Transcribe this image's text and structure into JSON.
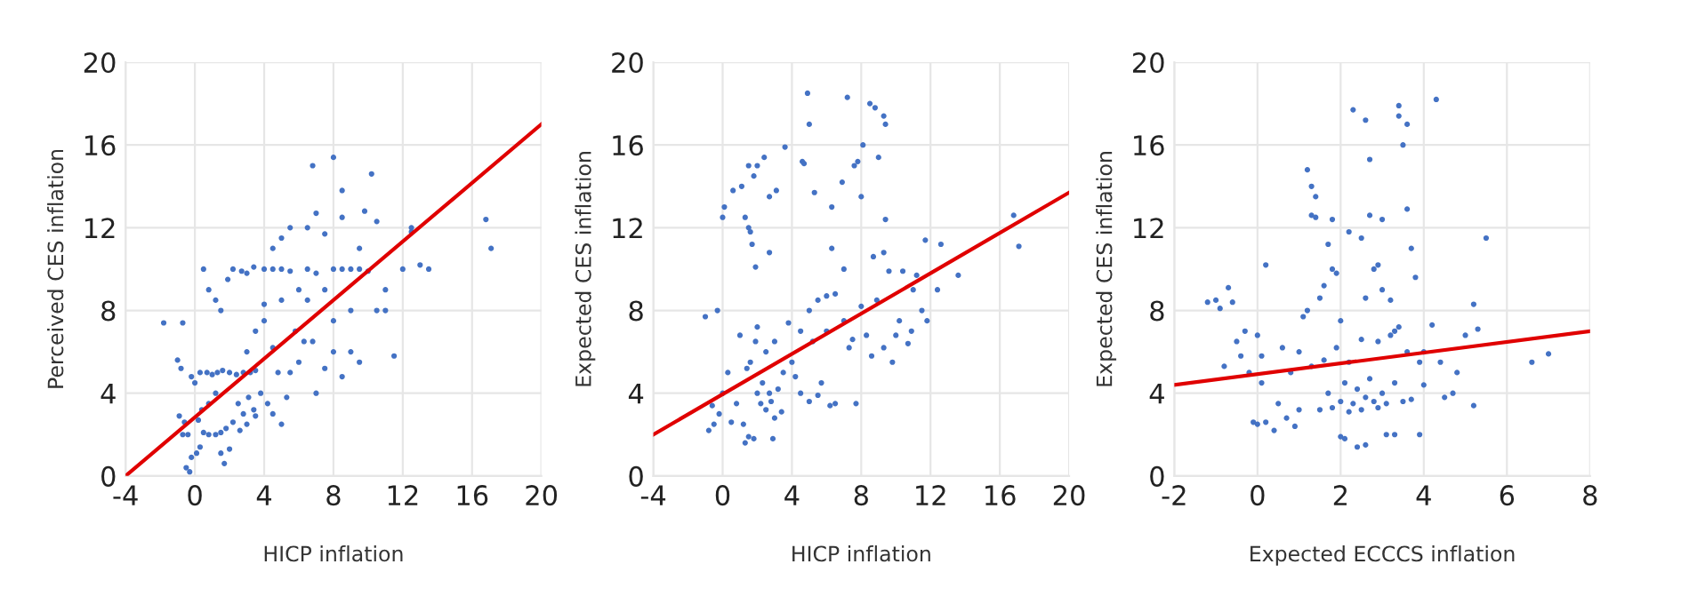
{
  "chart_data": [
    {
      "type": "scatter",
      "xlabel": "HICP inflation",
      "ylabel": "Perceived CES inflation",
      "xlim": [
        -4,
        20
      ],
      "ylim": [
        0,
        20
      ],
      "xticks": [
        -4,
        0,
        4,
        8,
        12,
        16,
        20
      ],
      "yticks": [
        0,
        4,
        8,
        12,
        16,
        20
      ],
      "grid": true,
      "series": [
        {
          "marker": "circle",
          "color": "#4472c4",
          "x": [
            -1.8,
            -0.7,
            -1,
            -0.8,
            -0.2,
            0,
            -0.9,
            -0.6,
            -0.7,
            -0.4,
            -0.5,
            -0.3,
            -0.2,
            0.1,
            0.3,
            0.5,
            0.8,
            1.2,
            1.5,
            1.8,
            1.5,
            1.7,
            2,
            0.2,
            0.4,
            0.8,
            1.2,
            0.3,
            0.7,
            1,
            1.3,
            1.6,
            2,
            2.4,
            2.8,
            3.2,
            3.5,
            0.5,
            0.8,
            1.2,
            1.5,
            1.9,
            2.2,
            2.7,
            3,
            3.4,
            4,
            4.5,
            5,
            5.5,
            6.5,
            7,
            8,
            8.5,
            9,
            9.5,
            10,
            2.5,
            2.8,
            3.1,
            3.4,
            2.2,
            2.6,
            3,
            3.5,
            3.8,
            4.2,
            4.5,
            5,
            5.3,
            4.8,
            5.5,
            6,
            6.3,
            6.8,
            7,
            7.5,
            8,
            8.5,
            9,
            9.5,
            10.5,
            11,
            11.5,
            11,
            12,
            12.5,
            13.5,
            13,
            12.5,
            10.5,
            10.2,
            8,
            6.8,
            8.5,
            9.8,
            6.5,
            5.5,
            7,
            8.5,
            4.5,
            5,
            7.5,
            9.5,
            4,
            5,
            6,
            4.5,
            3.5,
            4,
            16.8,
            17.1,
            5.8,
            7.5,
            9,
            8,
            6.5,
            3
          ],
          "values": [
            7.4,
            7.4,
            5.6,
            5.2,
            4.8,
            4.5,
            2.9,
            2.6,
            2,
            2,
            0.4,
            0.2,
            0.9,
            1.1,
            1.4,
            2.1,
            2,
            2,
            2.1,
            2.3,
            1.1,
            0.6,
            1.3,
            2.7,
            3.2,
            3.5,
            4,
            5,
            5,
            4.9,
            5,
            5.1,
            5,
            4.9,
            5,
            5,
            5.1,
            10,
            9,
            8.5,
            8,
            9.5,
            10,
            9.9,
            9.8,
            10.1,
            10,
            10,
            10,
            9.9,
            10,
            9.8,
            10,
            10,
            10,
            10,
            9.9,
            3.5,
            3,
            3.8,
            3.2,
            2.6,
            2.2,
            2.5,
            2.9,
            4,
            3.5,
            3,
            2.5,
            3.8,
            5,
            5,
            5.5,
            6.5,
            6.5,
            4,
            5.2,
            6,
            4.8,
            6,
            5.5,
            8,
            8,
            5.8,
            9,
            10,
            12,
            10,
            10.2,
            11.8,
            12.3,
            14.6,
            15.4,
            15,
            13.8,
            12.8,
            12,
            12,
            12.7,
            12.5,
            11,
            11.5,
            11.7,
            11,
            8.3,
            8.5,
            9,
            6.2,
            7,
            7.5,
            12.4,
            11,
            7,
            9,
            8,
            7.5,
            8.5,
            6
          ]
        },
        {
          "type": "line",
          "color": "#e00000",
          "x": [
            -4,
            20
          ],
          "values": [
            0,
            17
          ]
        }
      ]
    },
    {
      "type": "scatter",
      "xlabel": "HICP inflation",
      "ylabel": "Expected CES inflation",
      "xlim": [
        -4,
        20
      ],
      "ylim": [
        0,
        20
      ],
      "xticks": [
        -4,
        0,
        4,
        8,
        12,
        16,
        20
      ],
      "yticks": [
        0,
        4,
        8,
        12,
        16,
        20
      ],
      "grid": true,
      "series": [
        {
          "marker": "circle",
          "color": "#4472c4",
          "x": [
            -1,
            -0.3,
            0,
            0.1,
            0.6,
            1.1,
            1.3,
            1.5,
            1.8,
            2,
            2.4,
            1.6,
            1.7,
            1.9,
            1.5,
            2.7,
            3.1,
            2.7,
            3.6,
            4.6,
            4.7,
            4.9,
            5,
            5.3,
            6.3,
            6.9,
            7.2,
            7.6,
            7.8,
            8,
            8.1,
            8.5,
            8.8,
            9,
            9.3,
            9.4,
            9.4,
            6.3,
            -0.8,
            -0.5,
            -0.6,
            -0.2,
            0,
            0.3,
            0.5,
            0.8,
            1,
            1.2,
            1.3,
            1.5,
            1.8,
            2,
            2.2,
            2.3,
            2.5,
            2.7,
            2.8,
            3,
            3.2,
            3.5,
            2.9,
            3.4,
            1.6,
            1.9,
            1.4,
            2,
            2.5,
            3,
            3.8,
            4.2,
            4.5,
            5,
            5.5,
            5.7,
            6.2,
            6.5,
            7.7,
            4.5,
            5,
            5.5,
            6,
            6.5,
            7,
            7.3,
            7.5,
            8,
            8.3,
            8.6,
            8.7,
            8.9,
            9.3,
            9.6,
            9.8,
            10,
            10.2,
            10.4,
            10.7,
            11,
            11.2,
            11.5,
            11.8,
            11.7,
            12.4,
            12.6,
            13.6,
            16.8,
            17.1,
            7,
            6,
            5.2,
            4,
            9.3,
            10.9
          ],
          "values": [
            7.7,
            8,
            12.5,
            13,
            13.8,
            14,
            12.5,
            15,
            14.5,
            15,
            15.4,
            11.8,
            11.2,
            10.1,
            12,
            13.5,
            13.8,
            10.8,
            15.9,
            15.2,
            15.1,
            18.5,
            17,
            13.7,
            13,
            14.2,
            18.3,
            15,
            15.2,
            13.5,
            16,
            18,
            17.8,
            15.4,
            17.4,
            17,
            12.4,
            11,
            2.2,
            2.5,
            3.4,
            3,
            4,
            5,
            2.6,
            3.5,
            6.8,
            2.5,
            1.6,
            1.9,
            1.8,
            4,
            3.5,
            4.5,
            3.2,
            4,
            3.6,
            2.8,
            4.2,
            5,
            1.8,
            3.1,
            5.5,
            6.5,
            5.2,
            7.2,
            6,
            6.5,
            7.4,
            4.8,
            4,
            3.6,
            3.9,
            4.5,
            3.4,
            3.5,
            3.5,
            7,
            8,
            8.5,
            7,
            8.8,
            7.5,
            6.2,
            6.6,
            8.2,
            6.8,
            5.8,
            10.6,
            8.5,
            10.8,
            9.9,
            5.5,
            6.8,
            7.5,
            9.9,
            6.4,
            9,
            9.7,
            8,
            7.5,
            11.4,
            9,
            11.2,
            9.7,
            12.6,
            11.1,
            10,
            8.7,
            6.5,
            5.5,
            6.2,
            7
          ]
        },
        {
          "type": "line",
          "color": "#e00000",
          "x": [
            -4,
            20
          ],
          "values": [
            2,
            13.7
          ]
        }
      ]
    },
    {
      "type": "scatter",
      "xlabel": "Expected ECCCS inflation",
      "ylabel": "Expected CES inflation",
      "xlim": [
        -2,
        8
      ],
      "ylim": [
        0,
        20
      ],
      "xticks": [
        -2,
        0,
        2,
        4,
        6,
        8
      ],
      "yticks": [
        0,
        4,
        8,
        12,
        16,
        20
      ],
      "grid": true,
      "series": [
        {
          "marker": "circle",
          "color": "#4472c4",
          "x": [
            -1.2,
            -1,
            -0.9,
            -0.7,
            -0.6,
            -0.8,
            -0.5,
            -0.4,
            -0.3,
            -0.2,
            0,
            0.1,
            0.2,
            -0.1,
            0,
            0.2,
            0.1,
            0.4,
            0.5,
            0.7,
            0.8,
            0.9,
            1,
            1.1,
            1.2,
            1.2,
            1.3,
            1.4,
            1.4,
            1.3,
            1.5,
            1.6,
            1.7,
            1.8,
            1.8,
            1.9,
            2,
            2,
            2.1,
            2.2,
            2.3,
            2.4,
            2.5,
            2.6,
            2.6,
            2.7,
            2.7,
            2.8,
            3,
            3,
            3.1,
            3.2,
            3.3,
            3.4,
            3.4,
            3.5,
            3.6,
            3.6,
            3.7,
            3.8,
            3.9,
            4.3,
            4.2,
            4.4,
            4.5,
            4.7,
            4.8,
            5,
            5.2,
            5.2,
            5.3,
            5.5,
            6.6,
            7,
            1.5,
            1.7,
            1.8,
            2,
            2.1,
            2.2,
            2.3,
            2.4,
            2.5,
            2.6,
            2.7,
            2.8,
            2.9,
            3,
            3.1,
            3.3,
            3.5,
            3.7,
            4,
            1.6,
            1.9,
            2.2,
            2.5,
            2.9,
            3.2,
            3.4,
            3.6,
            4,
            1,
            0.6,
            1.3,
            2.6,
            2.9,
            3.3,
            3.9
          ],
          "values": [
            8.4,
            8.5,
            8.1,
            9.1,
            8.4,
            5.3,
            6.5,
            5.8,
            7,
            5,
            6.8,
            5.8,
            10.2,
            2.6,
            2.5,
            2.6,
            4.5,
            2.2,
            3.5,
            2.8,
            5,
            2.4,
            3.2,
            7.7,
            8,
            14.8,
            14,
            13.5,
            12.5,
            12.6,
            8.6,
            9.2,
            11.2,
            12.4,
            10,
            9.8,
            7.5,
            1.9,
            1.8,
            11.8,
            17.7,
            1.4,
            11.5,
            17.2,
            1.5,
            15.3,
            12.6,
            10,
            12.4,
            9,
            2,
            8.5,
            2,
            17.9,
            17.4,
            16,
            17,
            12.9,
            11,
            9.6,
            2,
            18.2,
            7.3,
            5.5,
            3.8,
            4,
            5,
            6.8,
            8.3,
            3.4,
            7.1,
            11.5,
            5.5,
            5.9,
            3.2,
            4,
            3.3,
            3.6,
            4.5,
            3.1,
            3.5,
            4.2,
            3.2,
            3.8,
            4.7,
            3.6,
            3.3,
            4,
            3.5,
            4.5,
            3.6,
            3.7,
            4.4,
            5.6,
            6.2,
            5.5,
            6.6,
            6.5,
            6.8,
            7.2,
            6,
            6,
            6,
            6.2,
            5.3,
            8.6,
            10.2,
            7,
            5.5
          ]
        },
        {
          "type": "line",
          "color": "#e00000",
          "x": [
            -2,
            8
          ],
          "values": [
            4.4,
            7.0
          ]
        }
      ]
    }
  ]
}
